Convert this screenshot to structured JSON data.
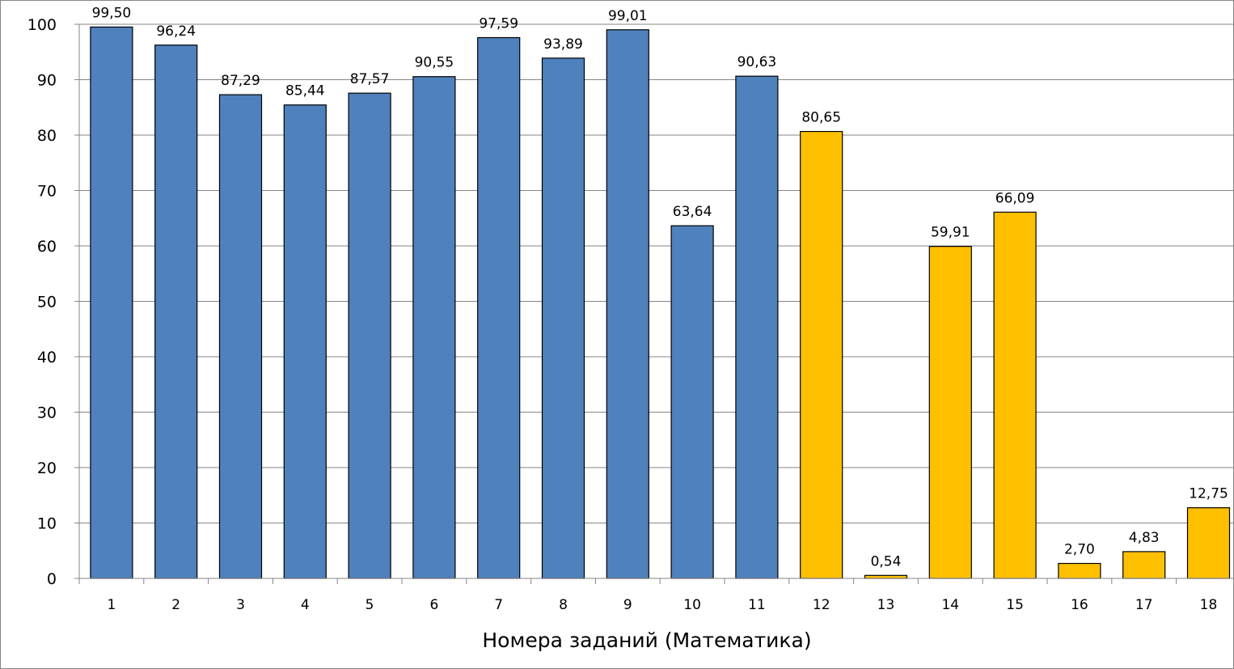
{
  "chart_data": {
    "type": "bar",
    "title": "",
    "xlabel": "Номера заданий (Математика)",
    "ylabel": "",
    "ylim": [
      0,
      100
    ],
    "yticks": [
      0,
      10,
      20,
      30,
      40,
      50,
      60,
      70,
      80,
      90,
      100
    ],
    "grid": "horizontal",
    "legend": "none",
    "categories": [
      "1",
      "2",
      "3",
      "4",
      "5",
      "6",
      "7",
      "8",
      "9",
      "10",
      "11",
      "12",
      "13",
      "14",
      "15",
      "16",
      "17",
      "18"
    ],
    "values": [
      99.5,
      96.24,
      87.29,
      85.44,
      87.57,
      90.55,
      97.59,
      93.89,
      99.01,
      63.64,
      90.63,
      80.65,
      0.54,
      59.91,
      66.09,
      2.7,
      4.83,
      12.75
    ],
    "value_labels": [
      "99,50",
      "96,24",
      "87,29",
      "85,44",
      "87,57",
      "90,55",
      "97,59",
      "93,89",
      "99,01",
      "63,64",
      "90,63",
      "80,65",
      "0,54",
      "59,91",
      "66,09",
      "2,70",
      "4,83",
      "12,75"
    ],
    "bar_groups": [
      "blue",
      "blue",
      "blue",
      "blue",
      "blue",
      "blue",
      "blue",
      "blue",
      "blue",
      "blue",
      "blue",
      "yellow",
      "yellow",
      "yellow",
      "yellow",
      "yellow",
      "yellow",
      "yellow"
    ],
    "colors": {
      "blue": "#4f81bd",
      "yellow": "#ffc000",
      "bar_outline": "#000000",
      "grid": "#868686",
      "axis": "#868686",
      "frame": "#868686"
    }
  }
}
